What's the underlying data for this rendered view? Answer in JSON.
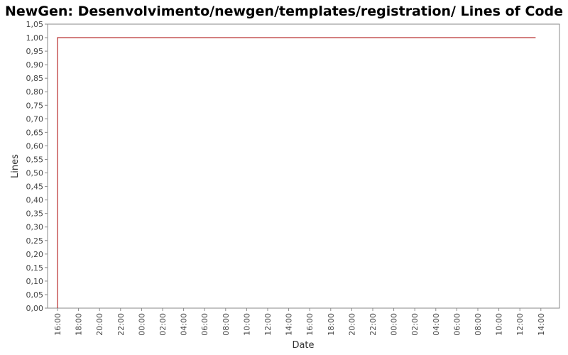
{
  "chart_data": {
    "type": "line",
    "title": "NewGen: Desenvolvimento/newgen/templates/registration/ Lines of Code",
    "xlabel": "Date",
    "ylabel": "Lines",
    "y_ticks": [
      "0,00",
      "0,05",
      "0,10",
      "0,15",
      "0,20",
      "0,25",
      "0,30",
      "0,35",
      "0,40",
      "0,45",
      "0,50",
      "0,55",
      "0,60",
      "0,65",
      "0,70",
      "0,75",
      "0,80",
      "0,85",
      "0,90",
      "0,95",
      "1,00",
      "1,05"
    ],
    "x_ticks": [
      "16:00",
      "18:00",
      "20:00",
      "22:00",
      "00:00",
      "02:00",
      "04:00",
      "06:00",
      "08:00",
      "10:00",
      "12:00",
      "14:00",
      "16:00",
      "18:00",
      "20:00",
      "22:00",
      "00:00",
      "02:00",
      "04:00",
      "06:00",
      "08:00",
      "10:00",
      "12:00",
      "14:00"
    ],
    "ylim": [
      0,
      1.05
    ],
    "xlim_hours": [
      0,
      47.5
    ],
    "x_ticks_start_hour": 16,
    "x_tick_step_hours": 2,
    "grid": false,
    "series": [
      {
        "color": "#aa0000",
        "points": [
          {
            "x": "16:00",
            "y": 0
          },
          {
            "x": "16:00",
            "y": 1.0
          },
          {
            "x": "13:30",
            "y": 1.0
          }
        ],
        "x_hours": [
          0,
          0,
          45.5
        ]
      }
    ]
  }
}
